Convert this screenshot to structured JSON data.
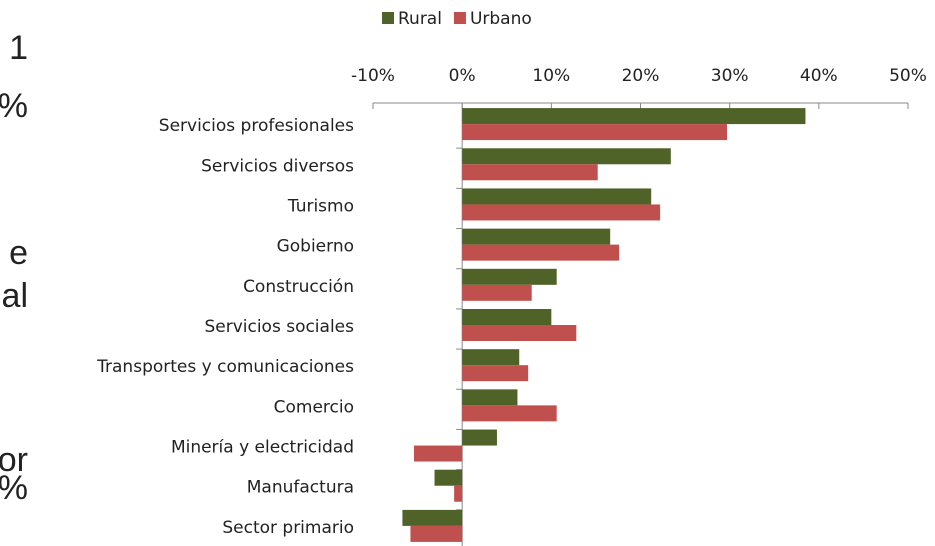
{
  "side_text": [
    "1",
    "%",
    "e",
    "al",
    "or",
    "%"
  ],
  "chart_data": {
    "type": "hbar",
    "categories": [
      "Servicios profesionales",
      "Servicios diversos",
      "Turismo",
      "Gobierno",
      "Construcción",
      "Servicios sociales",
      "Transportes y comunicaciones",
      "Comercio",
      "Minería y electricidad",
      "Manufactura",
      "Sector primario"
    ],
    "series": [
      {
        "name": "Rural",
        "color": "#4f6228",
        "values": [
          38.5,
          23.4,
          21.2,
          16.6,
          10.6,
          10.0,
          6.4,
          6.2,
          3.9,
          -3.1,
          -6.7
        ]
      },
      {
        "name": "Urbano",
        "color": "#c0504d",
        "values": [
          29.7,
          15.2,
          22.2,
          17.6,
          7.8,
          12.8,
          7.4,
          10.6,
          -5.4,
          -0.9,
          -5.8
        ]
      }
    ],
    "xlim": [
      -10,
      50
    ],
    "xticks": [
      {
        "value": -10,
        "label": "-10%"
      },
      {
        "value": 0,
        "label": "0%"
      },
      {
        "value": 10,
        "label": "10%"
      },
      {
        "value": 20,
        "label": "20%"
      },
      {
        "value": 30,
        "label": "30%"
      },
      {
        "value": 40,
        "label": "40%"
      },
      {
        "value": 50,
        "label": "50%"
      }
    ],
    "legend": "top"
  }
}
